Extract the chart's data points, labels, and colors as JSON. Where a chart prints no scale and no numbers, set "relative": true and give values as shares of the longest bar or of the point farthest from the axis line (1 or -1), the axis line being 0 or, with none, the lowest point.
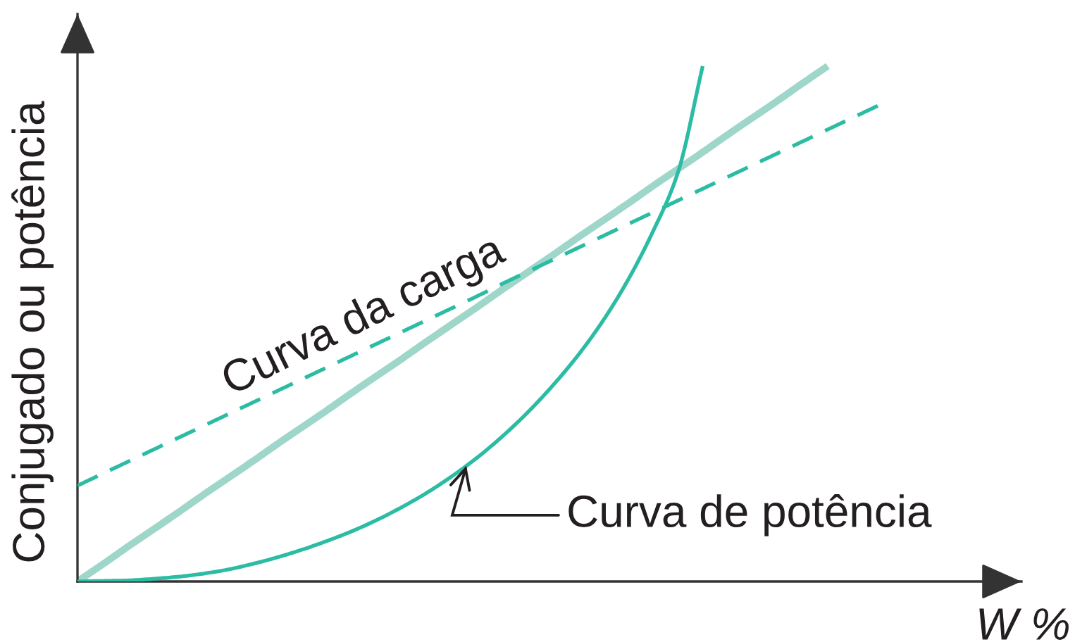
{
  "chart_data": {
    "type": "line",
    "relative": true,
    "xlabel": "W %",
    "ylabel": "Conjugado ou potência",
    "categories": [
      null,
      null,
      null,
      null,
      null,
      null,
      null,
      null,
      null,
      null,
      null,
      null,
      null,
      null,
      null,
      null,
      null,
      null,
      null,
      null,
      null,
      null,
      null,
      null,
      null,
      null,
      null,
      null,
      null,
      null,
      null,
      null,
      null
    ],
    "series": [
      {
        "color": "#9fd6ca",
        "values": [
          0,
          0.033,
          0.067,
          0.1,
          0.133,
          0.167,
          0.2,
          0.233,
          0.267,
          0.3,
          0.333,
          0.367,
          0.4,
          0.433,
          0.467,
          0.5,
          0.533,
          0.567,
          0.6,
          0.633,
          0.667,
          0.7,
          0.733,
          0.767,
          0.8,
          0.833,
          0.867,
          0.9,
          0.933,
          0.967,
          1.0,
          null,
          null
        ]
      },
      {
        "name": "Curva da carga",
        "color": "#2bbca3",
        "line_style": "dashed",
        "values": [
          0.186,
          0.209,
          0.232,
          0.255,
          0.278,
          0.301,
          0.324,
          0.347,
          0.37,
          0.393,
          0.416,
          0.439,
          0.462,
          0.485,
          0.508,
          0.531,
          0.554,
          0.578,
          0.601,
          0.624,
          0.647,
          0.67,
          0.693,
          0.716,
          0.739,
          0.762,
          0.785,
          0.808,
          0.831,
          0.854,
          0.877,
          0.9,
          0.923
        ]
      },
      {
        "name": "Curva de potência",
        "color": "#2bbca3",
        "values": [
          0,
          0.001,
          0.002,
          0.005,
          0.009,
          0.015,
          0.023,
          0.034,
          0.047,
          0.062,
          0.079,
          0.098,
          0.12,
          0.145,
          0.173,
          0.205,
          0.241,
          0.282,
          0.328,
          0.38,
          0.438,
          0.505,
          0.584,
          0.678,
          0.792,
          1.0,
          null,
          null,
          null,
          null,
          null,
          null,
          null
        ]
      }
    ]
  }
}
